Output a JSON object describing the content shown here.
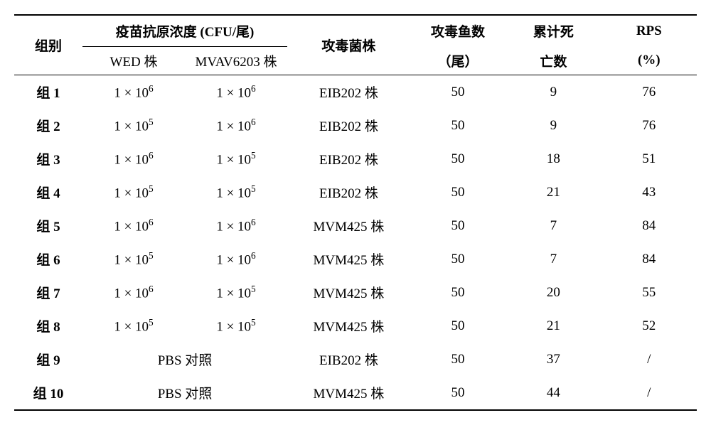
{
  "headers": {
    "group": "组别",
    "antigen_title": "疫苗抗原浓度 (CFU/尾)",
    "wed": "WED 株",
    "mvav": "MVAV6203 株",
    "challenge_strain": "攻毒菌株",
    "fish_count_l1": "攻毒鱼数",
    "fish_count_l2": "（尾）",
    "death_l1": "累计死",
    "death_l2": "亡数",
    "rps_l1": "RPS",
    "rps_l2": "(%)"
  },
  "rows": [
    {
      "group": "组 1",
      "wed": "1 × 10",
      "wed_exp": "6",
      "mvav": "1 × 10",
      "mvav_exp": "6",
      "strain": "EIB202 株",
      "fish": "50",
      "death": "9",
      "rps": "76"
    },
    {
      "group": "组 2",
      "wed": "1 × 10",
      "wed_exp": "5",
      "mvav": "1 × 10",
      "mvav_exp": "6",
      "strain": "EIB202 株",
      "fish": "50",
      "death": "9",
      "rps": "76"
    },
    {
      "group": "组 3",
      "wed": "1 × 10",
      "wed_exp": "6",
      "mvav": "1 × 10",
      "mvav_exp": "5",
      "strain": "EIB202 株",
      "fish": "50",
      "death": "18",
      "rps": "51"
    },
    {
      "group": "组 4",
      "wed": "1 × 10",
      "wed_exp": "5",
      "mvav": "1 × 10",
      "mvav_exp": "5",
      "strain": "EIB202 株",
      "fish": "50",
      "death": "21",
      "rps": "43"
    },
    {
      "group": "组 5",
      "wed": "1 × 10",
      "wed_exp": "6",
      "mvav": "1 × 10",
      "mvav_exp": "6",
      "strain": "MVM425 株",
      "fish": "50",
      "death": "7",
      "rps": "84"
    },
    {
      "group": "组 6",
      "wed": "1 × 10",
      "wed_exp": "5",
      "mvav": "1 × 10",
      "mvav_exp": "6",
      "strain": "MVM425 株",
      "fish": "50",
      "death": "7",
      "rps": "84"
    },
    {
      "group": "组 7",
      "wed": "1 × 10",
      "wed_exp": "6",
      "mvav": "1 × 10",
      "mvav_exp": "5",
      "strain": "MVM425 株",
      "fish": "50",
      "death": "20",
      "rps": "55"
    },
    {
      "group": "组 8",
      "wed": "1 × 10",
      "wed_exp": "5",
      "mvav": "1 × 10",
      "mvav_exp": "5",
      "strain": "MVM425 株",
      "fish": "50",
      "death": "21",
      "rps": "52"
    },
    {
      "group": "组 9",
      "pbs": "PBS 对照",
      "strain": "EIB202 株",
      "fish": "50",
      "death": "37",
      "rps": "/"
    },
    {
      "group": "组 10",
      "pbs": "PBS 对照",
      "strain": "MVM425 株",
      "fish": "50",
      "death": "44",
      "rps": "/"
    }
  ]
}
